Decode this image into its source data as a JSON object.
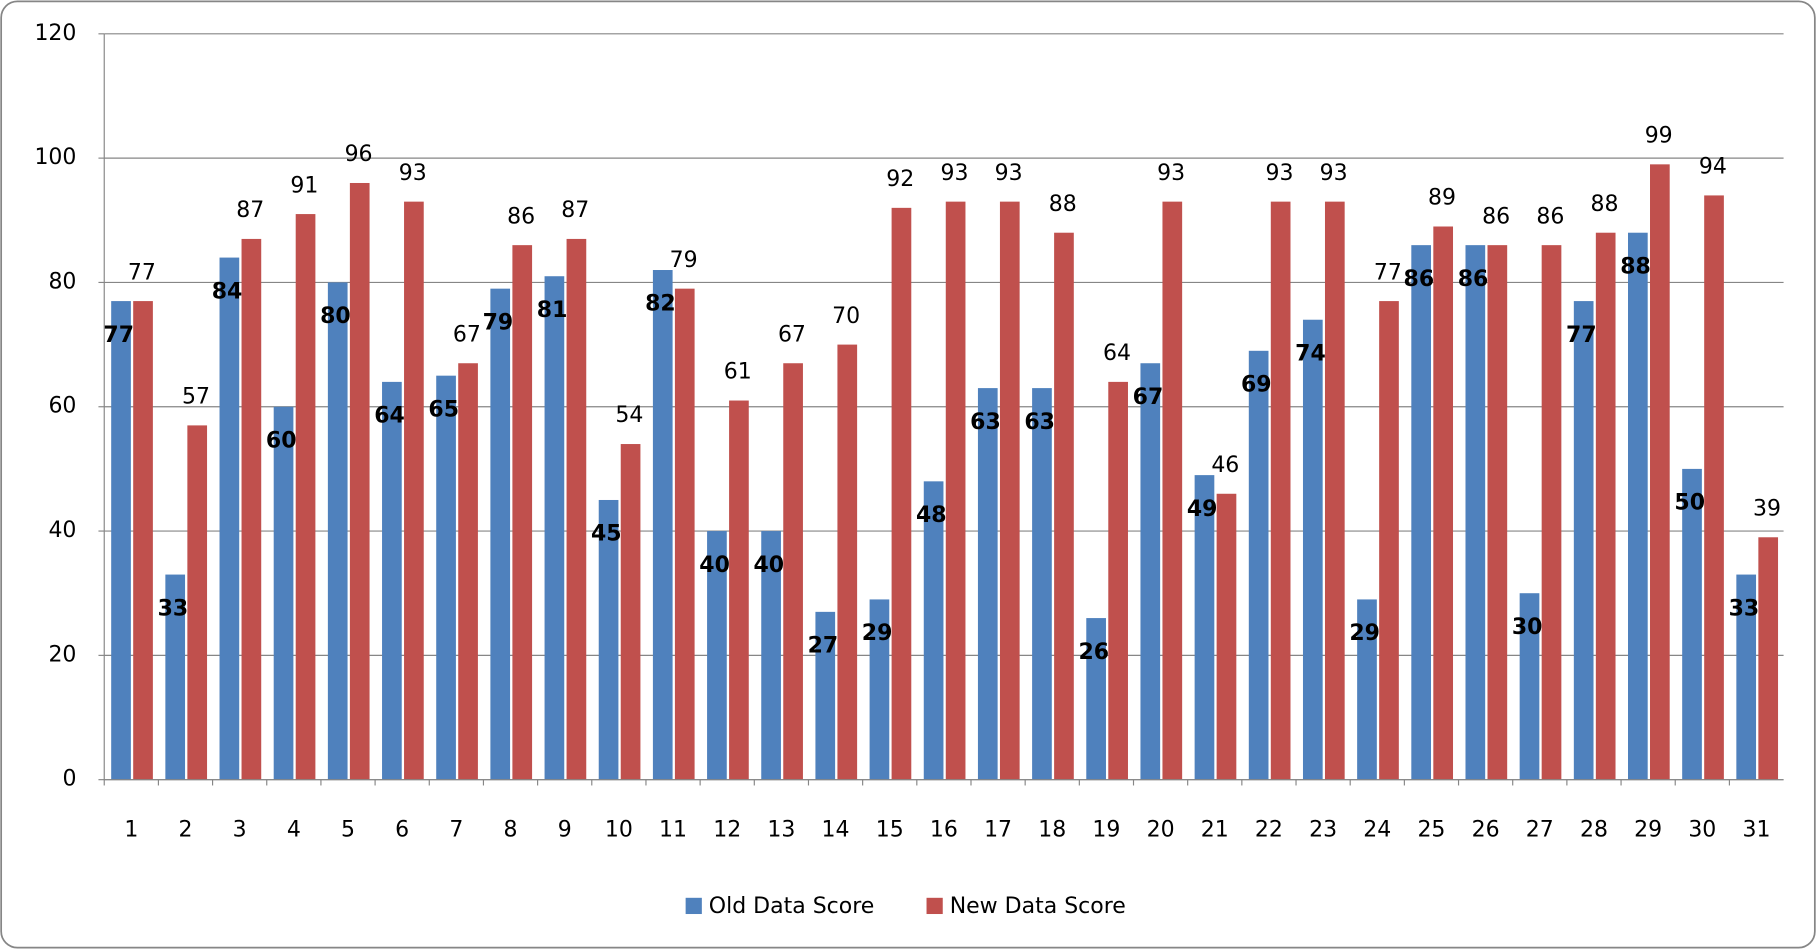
{
  "chart_data": {
    "type": "bar",
    "categories": [
      "1",
      "2",
      "3",
      "4",
      "5",
      "6",
      "7",
      "8",
      "9",
      "10",
      "11",
      "12",
      "13",
      "14",
      "15",
      "16",
      "17",
      "18",
      "19",
      "20",
      "21",
      "22",
      "23",
      "24",
      "25",
      "26",
      "27",
      "28",
      "29",
      "30",
      "31"
    ],
    "series": [
      {
        "name": "Old Data Score",
        "color": "#4f81bd",
        "values": [
          77,
          33,
          84,
          60,
          80,
          64,
          65,
          79,
          81,
          45,
          82,
          40,
          40,
          27,
          29,
          48,
          63,
          63,
          26,
          67,
          49,
          69,
          74,
          29,
          86,
          86,
          30,
          77,
          88,
          50,
          33
        ]
      },
      {
        "name": "New Data Score",
        "color": "#c0504d",
        "values": [
          77,
          57,
          87,
          91,
          96,
          93,
          67,
          86,
          87,
          54,
          79,
          61,
          67,
          70,
          92,
          93,
          93,
          88,
          64,
          93,
          46,
          93,
          93,
          77,
          89,
          86,
          86,
          88,
          99,
          94,
          39
        ]
      }
    ],
    "ylim": [
      0,
      120
    ],
    "yticks": [
      0,
      20,
      40,
      60,
      80,
      100,
      120
    ],
    "grid": true,
    "legend": "bottom"
  }
}
